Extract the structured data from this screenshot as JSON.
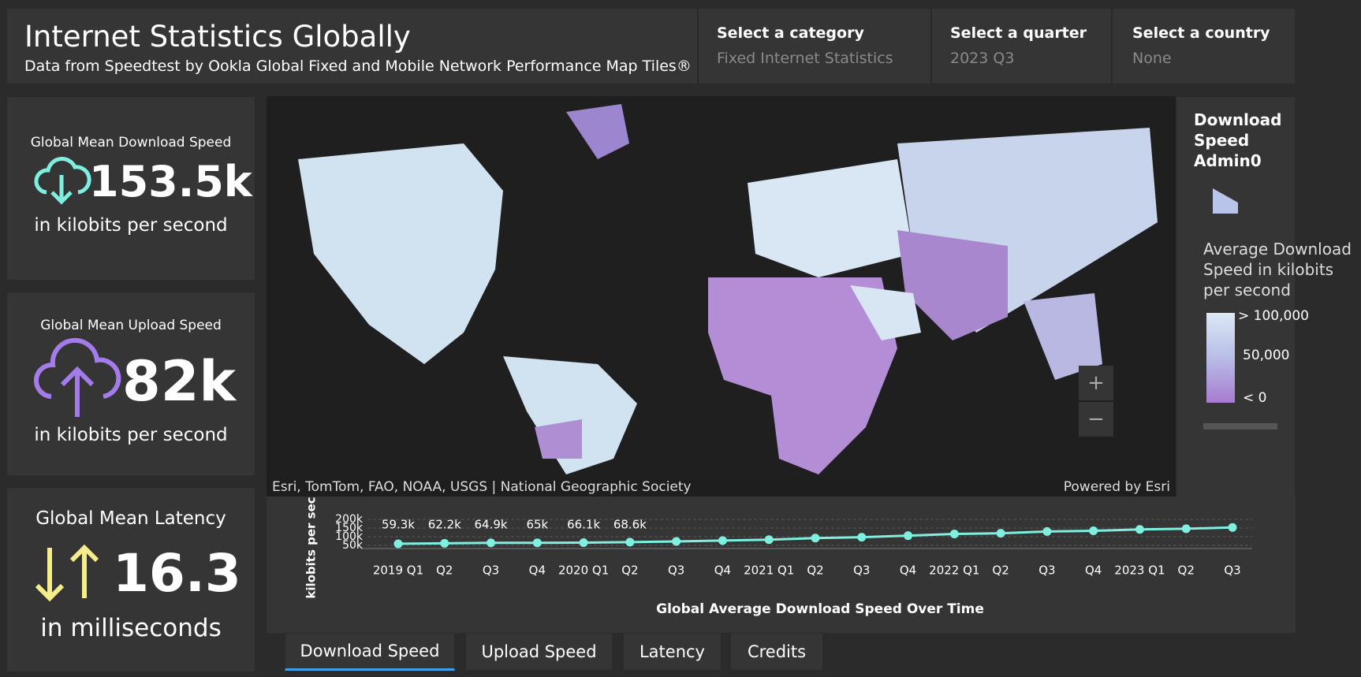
{
  "header": {
    "title": "Internet Statistics Globally",
    "subtitle": "Data from Speedtest by Ookla Global Fixed and Mobile Network Performance Map Tiles®"
  },
  "filters": [
    {
      "label": "Select a category",
      "value": "Fixed Internet Statistics"
    },
    {
      "label": "Select a quarter",
      "value": "2023 Q3"
    },
    {
      "label": "Select a country",
      "value": "None"
    }
  ],
  "indicators": [
    {
      "title": "Global Mean Download Speed",
      "value": "153.5k",
      "unit": "in kilobits per second"
    },
    {
      "title": "Global Mean Upload Speed",
      "value": "82k",
      "unit": "in kilobits per second"
    },
    {
      "title": "Global Mean Latency",
      "value": "16.3",
      "unit": "in milliseconds"
    }
  ],
  "map": {
    "attribution": "Esri, TomTom, FAO, NOAA, USGS | National Geographic Society",
    "powered": "Powered by Esri",
    "zoom_in": "+",
    "zoom_out": "−"
  },
  "legend": {
    "title": "Download Speed Admin0",
    "field": "Average Download Speed in kilobits per second",
    "high": "> 100,000",
    "mid": "50,000",
    "low": "< 0"
  },
  "chart_data": {
    "type": "line",
    "title": "Global Average Download Speed Over Time",
    "y_label": "kilobits per sec",
    "color": "#7ff0df",
    "categories": [
      "2019 Q1",
      "Q2",
      "Q3",
      "Q4",
      "2020 Q1",
      "Q2",
      "Q3",
      "Q4",
      "2021 Q1",
      "Q2",
      "Q3",
      "Q4",
      "2022 Q1",
      "Q2",
      "Q3",
      "Q4",
      "2023 Q1",
      "Q2",
      "Q3"
    ],
    "values": [
      59300,
      62200,
      64900,
      65000,
      66100,
      68600,
      73000,
      78000,
      83000,
      92000,
      97000,
      106000,
      116000,
      120000,
      130000,
      134000,
      142000,
      146000,
      153500
    ],
    "value_labels": [
      "59.3k",
      "62.2k",
      "64.9k",
      "65k",
      "66.1k",
      "68.6k",
      null,
      null,
      null,
      null,
      null,
      null,
      null,
      null,
      null,
      null,
      null,
      null,
      null
    ],
    "ylim": [
      0,
      200000
    ],
    "yticks": [
      {
        "value": 50000,
        "label": "50k"
      },
      {
        "value": 100000,
        "label": "100k"
      },
      {
        "value": 150000,
        "label": "150k"
      },
      {
        "value": 200000,
        "label": "200k"
      }
    ],
    "grid": true
  },
  "tabs": [
    "Download Speed",
    "Upload Speed",
    "Latency",
    "Credits"
  ]
}
